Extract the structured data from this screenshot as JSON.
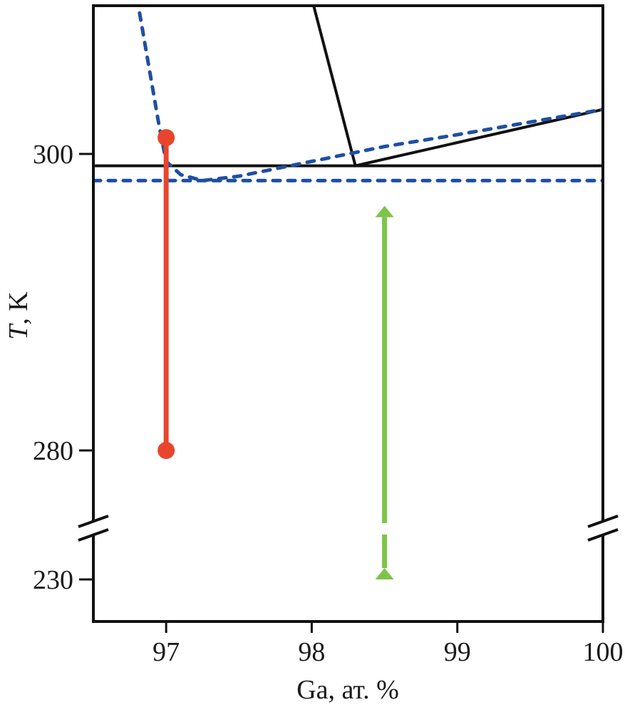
{
  "chart_data": {
    "type": "line",
    "xlabel": "Ga, ат. %",
    "ylabel_italic": "T",
    "ylabel_rest": ", K",
    "xlim": [
      96.5,
      100
    ],
    "x_ticks": [
      97,
      98,
      99,
      100
    ],
    "x_tick_labels": [
      "97",
      "98",
      "99",
      "100"
    ],
    "y_ticks": [
      300,
      280,
      230
    ],
    "y_tick_labels": [
      "300",
      "280",
      "230"
    ],
    "y_axis_break": {
      "lower_segment": [
        226,
        234
      ],
      "upper_segment": [
        275,
        310
      ]
    },
    "grid": false,
    "legend": "none",
    "colors": {
      "solid_phase_lines": "#111111",
      "dashed_phase_lines": "#1f4fa3",
      "red_path": "#e8452c",
      "green_path": "#7dc44b"
    },
    "series": [
      {
        "style": "solid",
        "color_key": "solid_phase_lines",
        "points": [
          [
            98.0,
            310.5
          ],
          [
            98.3,
            299.2
          ]
        ]
      },
      {
        "style": "solid",
        "color_key": "solid_phase_lines",
        "points": [
          [
            98.3,
            299.2
          ],
          [
            100,
            303.0
          ]
        ]
      },
      {
        "style": "solid",
        "color_key": "solid_phase_lines",
        "points": [
          [
            96.5,
            299.2
          ],
          [
            100,
            299.2
          ]
        ]
      },
      {
        "style": "dashed",
        "color_key": "dashed_phase_lines",
        "points": [
          [
            96.8,
            310.5
          ],
          [
            96.95,
            302.0
          ],
          [
            97.0,
            299.5
          ],
          [
            97.1,
            298.6
          ],
          [
            97.25,
            298.2
          ],
          [
            97.5,
            298.5
          ],
          [
            98.0,
            299.5
          ],
          [
            98.5,
            300.5
          ],
          [
            99.0,
            301.3
          ],
          [
            100,
            303.0
          ]
        ]
      },
      {
        "style": "dashed",
        "color_key": "dashed_phase_lines",
        "points": [
          [
            96.5,
            298.2
          ],
          [
            100,
            298.2
          ]
        ]
      }
    ],
    "paths": [
      {
        "color_key": "red_path",
        "x": 97.0,
        "from": 280,
        "to": 301.1,
        "markers": "circles-both-ends"
      },
      {
        "color_key": "green_path",
        "x": 98.5,
        "from": 230,
        "to": 296.5,
        "markers": "arrows-both-ends",
        "broken_at_axis_break": true
      }
    ]
  }
}
